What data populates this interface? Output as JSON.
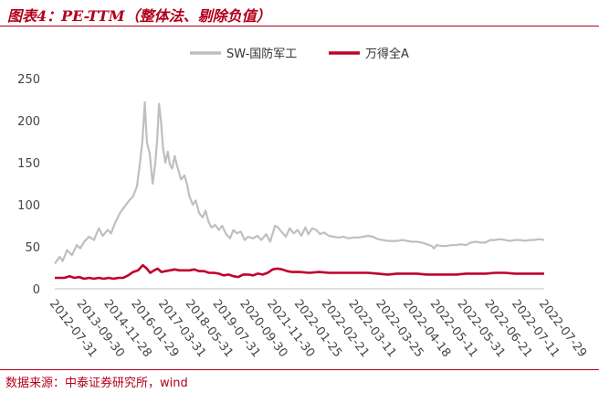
{
  "header": {
    "title": "图表4：PE-TTM（整体法、剔除负值）"
  },
  "footer": {
    "source": "数据来源：中泰证券研究所，wind"
  },
  "colors": {
    "accent": "#b3001b",
    "defense": "#bfbfbf",
    "all_a": "#c0002a"
  },
  "chart_data": {
    "type": "line",
    "title": "",
    "xlabel": "",
    "ylabel": "",
    "ylim": [
      0,
      250
    ],
    "yticks": [
      0,
      50,
      100,
      150,
      200,
      250
    ],
    "grid": false,
    "legend_position": "top",
    "x_tick_labels": [
      "2012-07-31",
      "2013-09-30",
      "2014-11-28",
      "2016-01-29",
      "2017-03-31",
      "2018-05-31",
      "2019-07-31",
      "2020-09-30",
      "2021-11-30",
      "2022-01-25",
      "2022-02-21",
      "2022-03-11",
      "2022-03-25",
      "2022-04-18",
      "2022-05-11",
      "2022-05-31",
      "2022-06-21",
      "2022-07-11",
      "2022-07-29"
    ],
    "x_range": [
      0,
      100
    ],
    "series": [
      {
        "name": "SW-国防军工",
        "color": "#bfbfbf",
        "points": [
          [
            0,
            30
          ],
          [
            1,
            38
          ],
          [
            1.6,
            33
          ],
          [
            2.5,
            46
          ],
          [
            3.5,
            40
          ],
          [
            4.5,
            52
          ],
          [
            5.2,
            48
          ],
          [
            6,
            56
          ],
          [
            7,
            62
          ],
          [
            8,
            58
          ],
          [
            9,
            72
          ],
          [
            9.8,
            63
          ],
          [
            10.8,
            70
          ],
          [
            11.5,
            66
          ],
          [
            12.3,
            78
          ],
          [
            13.3,
            90
          ],
          [
            14.3,
            98
          ],
          [
            15.2,
            105
          ],
          [
            16,
            110
          ],
          [
            16.8,
            122
          ],
          [
            17.4,
            150
          ],
          [
            17.9,
            175
          ],
          [
            18.4,
            222
          ],
          [
            18.8,
            175
          ],
          [
            19.4,
            160
          ],
          [
            20,
            125
          ],
          [
            20.5,
            148
          ],
          [
            20.9,
            175
          ],
          [
            21.3,
            220
          ],
          [
            21.7,
            200
          ],
          [
            22.1,
            168
          ],
          [
            22.6,
            150
          ],
          [
            23.1,
            163
          ],
          [
            23.5,
            148
          ],
          [
            24,
            143
          ],
          [
            24.5,
            158
          ],
          [
            25,
            146
          ],
          [
            25.8,
            130
          ],
          [
            26.5,
            135
          ],
          [
            27,
            125
          ],
          [
            27.5,
            110
          ],
          [
            28.2,
            100
          ],
          [
            28.8,
            105
          ],
          [
            29.5,
            90
          ],
          [
            30.2,
            85
          ],
          [
            30.8,
            93
          ],
          [
            31.4,
            80
          ],
          [
            32,
            73
          ],
          [
            32.8,
            76
          ],
          [
            33.5,
            70
          ],
          [
            34.2,
            75
          ],
          [
            35,
            65
          ],
          [
            35.8,
            60
          ],
          [
            36.5,
            70
          ],
          [
            37.2,
            66
          ],
          [
            38,
            68
          ],
          [
            38.8,
            58
          ],
          [
            39.5,
            62
          ],
          [
            40.5,
            60
          ],
          [
            41.4,
            63
          ],
          [
            42.2,
            58
          ],
          [
            43.2,
            65
          ],
          [
            44,
            56
          ],
          [
            45,
            75
          ],
          [
            45.6,
            73
          ],
          [
            46.3,
            68
          ],
          [
            47.2,
            62
          ],
          [
            48,
            72
          ],
          [
            48.8,
            66
          ],
          [
            49.6,
            70
          ],
          [
            50.4,
            63
          ],
          [
            51.2,
            73
          ],
          [
            51.8,
            65
          ],
          [
            52.6,
            72
          ],
          [
            53.4,
            70
          ],
          [
            54.2,
            65
          ],
          [
            55,
            67
          ],
          [
            56,
            63
          ],
          [
            57,
            62
          ],
          [
            58,
            61
          ],
          [
            59,
            62
          ],
          [
            60,
            60
          ],
          [
            61,
            61
          ],
          [
            62,
            61
          ],
          [
            63,
            62
          ],
          [
            64,
            63
          ],
          [
            65,
            62
          ],
          [
            66,
            59
          ],
          [
            67,
            58
          ],
          [
            68,
            57
          ],
          [
            69,
            57
          ],
          [
            70,
            57
          ],
          [
            71,
            58
          ],
          [
            72,
            57
          ],
          [
            73,
            56
          ],
          [
            74,
            56
          ],
          [
            75,
            55
          ],
          [
            76,
            53
          ],
          [
            77,
            51
          ],
          [
            77.5,
            48
          ],
          [
            78,
            52
          ],
          [
            79,
            51
          ],
          [
            80,
            51
          ],
          [
            81,
            52
          ],
          [
            82,
            52
          ],
          [
            83,
            53
          ],
          [
            84,
            52
          ],
          [
            85,
            55
          ],
          [
            86,
            56
          ],
          [
            87,
            55
          ],
          [
            88,
            55
          ],
          [
            89,
            58
          ],
          [
            90,
            58
          ],
          [
            91,
            59
          ],
          [
            92,
            58
          ],
          [
            93,
            57
          ],
          [
            94,
            58
          ],
          [
            95,
            58
          ],
          [
            96,
            57
          ],
          [
            97,
            58
          ],
          [
            98,
            58
          ],
          [
            99,
            59
          ],
          [
            100,
            58
          ]
        ]
      },
      {
        "name": "万得全A",
        "color": "#c0002a",
        "points": [
          [
            0,
            13
          ],
          [
            2,
            13
          ],
          [
            3,
            15
          ],
          [
            4,
            13
          ],
          [
            5,
            14
          ],
          [
            6,
            12
          ],
          [
            7,
            13
          ],
          [
            8,
            12
          ],
          [
            9,
            13
          ],
          [
            10,
            12
          ],
          [
            11,
            13
          ],
          [
            12,
            12
          ],
          [
            13,
            13
          ],
          [
            14,
            13
          ],
          [
            15,
            16
          ],
          [
            16,
            20
          ],
          [
            17,
            22
          ],
          [
            18,
            28
          ],
          [
            18.8,
            24
          ],
          [
            19.5,
            19
          ],
          [
            20.3,
            22
          ],
          [
            21,
            24
          ],
          [
            21.8,
            20
          ],
          [
            22.6,
            21
          ],
          [
            23.5,
            22
          ],
          [
            24.5,
            23
          ],
          [
            25.5,
            22
          ],
          [
            26.5,
            22
          ],
          [
            27.5,
            22
          ],
          [
            28.5,
            23
          ],
          [
            29.5,
            21
          ],
          [
            30.5,
            21
          ],
          [
            31.5,
            19
          ],
          [
            32.5,
            19
          ],
          [
            33.5,
            18
          ],
          [
            34.5,
            16
          ],
          [
            35.5,
            17
          ],
          [
            36.5,
            15
          ],
          [
            37.5,
            14
          ],
          [
            38.5,
            17
          ],
          [
            39.5,
            17
          ],
          [
            40.5,
            16
          ],
          [
            41.5,
            18
          ],
          [
            42.5,
            17
          ],
          [
            43.5,
            19
          ],
          [
            44.5,
            23
          ],
          [
            45.5,
            24
          ],
          [
            46.5,
            23
          ],
          [
            47.5,
            21
          ],
          [
            48.5,
            20
          ],
          [
            50,
            20
          ],
          [
            52,
            19
          ],
          [
            54,
            20
          ],
          [
            56,
            19
          ],
          [
            58,
            19
          ],
          [
            60,
            19
          ],
          [
            62,
            19
          ],
          [
            64,
            19
          ],
          [
            66,
            18
          ],
          [
            68,
            17
          ],
          [
            70,
            18
          ],
          [
            72,
            18
          ],
          [
            74,
            18
          ],
          [
            76,
            17
          ],
          [
            78,
            17
          ],
          [
            80,
            17
          ],
          [
            82,
            17
          ],
          [
            84,
            18
          ],
          [
            86,
            18
          ],
          [
            88,
            18
          ],
          [
            90,
            19
          ],
          [
            92,
            19
          ],
          [
            94,
            18
          ],
          [
            96,
            18
          ],
          [
            98,
            18
          ],
          [
            100,
            18
          ]
        ]
      }
    ]
  }
}
